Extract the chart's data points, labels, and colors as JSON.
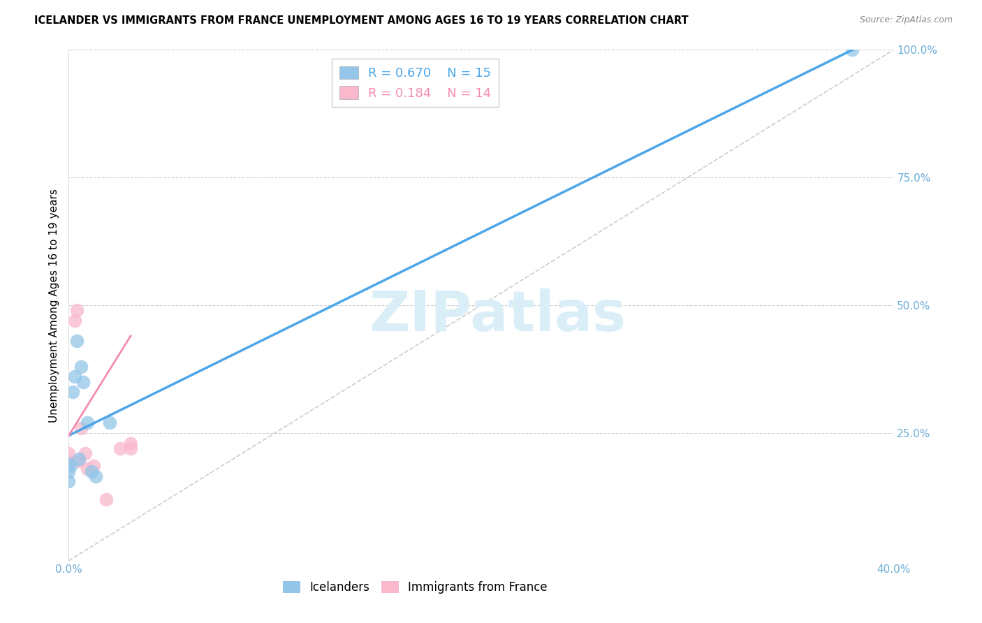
{
  "title": "ICELANDER VS IMMIGRANTS FROM FRANCE UNEMPLOYMENT AMONG AGES 16 TO 19 YEARS CORRELATION CHART",
  "source": "Source: ZipAtlas.com",
  "ylabel": "Unemployment Among Ages 16 to 19 years",
  "r_icelanders": 0.67,
  "n_icelanders": 15,
  "r_immigrants": 0.184,
  "n_immigrants": 14,
  "legend_label_1": "Icelanders",
  "legend_label_2": "Immigrants from France",
  "blue_scatter_color": "#93c6e8",
  "pink_scatter_color": "#f9b8cc",
  "blue_line_color": "#4da6e8",
  "pink_line_color": "#f48cb1",
  "axis_label_color": "#6baed6",
  "watermark_color": "#daeef8",
  "xlim": [
    0.0,
    0.4
  ],
  "ylim": [
    0.0,
    1.0
  ],
  "xtick_positions": [
    0.0,
    0.05,
    0.1,
    0.15,
    0.2,
    0.25,
    0.3,
    0.35,
    0.4
  ],
  "xtick_labels": [
    "0.0%",
    "",
    "",
    "",
    "",
    "",
    "",
    "",
    "40.0%"
  ],
  "ytick_positions": [
    0.0,
    0.25,
    0.5,
    0.75,
    1.0
  ],
  "ytick_labels": [
    "",
    "25.0%",
    "50.0%",
    "75.0%",
    "100.0%"
  ],
  "blue_line_x": [
    0.0,
    0.38
  ],
  "blue_line_y": [
    0.245,
    1.0
  ],
  "pink_line_x": [
    0.0,
    0.03
  ],
  "pink_line_y": [
    0.245,
    0.44
  ],
  "diag_line_x": [
    0.0,
    0.4
  ],
  "diag_line_y": [
    0.0,
    1.0
  ],
  "icelanders_x": [
    0.0,
    0.0,
    0.0,
    0.001,
    0.002,
    0.003,
    0.004,
    0.005,
    0.006,
    0.007,
    0.009,
    0.011,
    0.013,
    0.02,
    0.38
  ],
  "icelanders_y": [
    0.155,
    0.175,
    0.19,
    0.185,
    0.33,
    0.36,
    0.43,
    0.2,
    0.38,
    0.35,
    0.27,
    0.175,
    0.165,
    0.27,
    1.0
  ],
  "immigrants_x": [
    0.0,
    0.0,
    0.0,
    0.003,
    0.004,
    0.005,
    0.006,
    0.008,
    0.009,
    0.012,
    0.018,
    0.025,
    0.03,
    0.03
  ],
  "immigrants_y": [
    0.19,
    0.195,
    0.21,
    0.47,
    0.49,
    0.195,
    0.26,
    0.21,
    0.18,
    0.185,
    0.12,
    0.22,
    0.23,
    0.22
  ]
}
